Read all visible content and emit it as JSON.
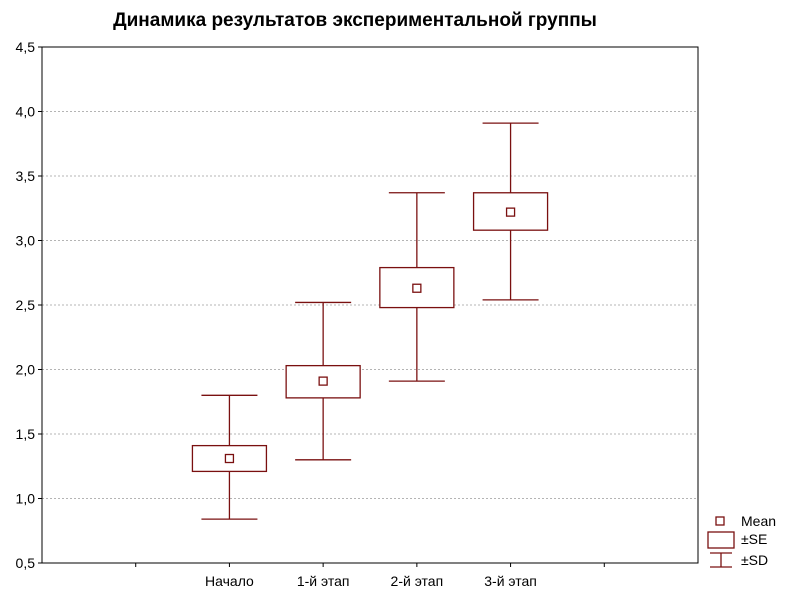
{
  "chart_data": {
    "type": "box",
    "title": "Динамика результатов экспериментальной группы",
    "categories": [
      "Начало",
      "1-й этап",
      "2-й этап",
      "3-й этап"
    ],
    "mean": [
      1.31,
      1.91,
      2.63,
      3.22
    ],
    "se_low": [
      1.21,
      1.78,
      2.48,
      3.08
    ],
    "se_high": [
      1.41,
      2.03,
      2.79,
      3.37
    ],
    "sd_low": [
      0.84,
      1.3,
      1.91,
      2.54
    ],
    "sd_high": [
      1.8,
      2.52,
      3.37,
      3.91
    ],
    "ylim": [
      0.5,
      4.5
    ],
    "y_ticks": [
      "0,5",
      "1,0",
      "1,5",
      "2,0",
      "2,5",
      "3,0",
      "3,5",
      "4,0",
      "4,5"
    ],
    "y_tick_values": [
      0.5,
      1.0,
      1.5,
      2.0,
      2.5,
      3.0,
      3.5,
      4.0,
      4.5
    ],
    "grid": true,
    "legend_position": "bottom-right",
    "legend": [
      "Mean",
      "±SE",
      "±SD"
    ],
    "colors": {
      "series": "#7a1010",
      "grid": "#b4b4b4",
      "axis": "#000000"
    }
  }
}
